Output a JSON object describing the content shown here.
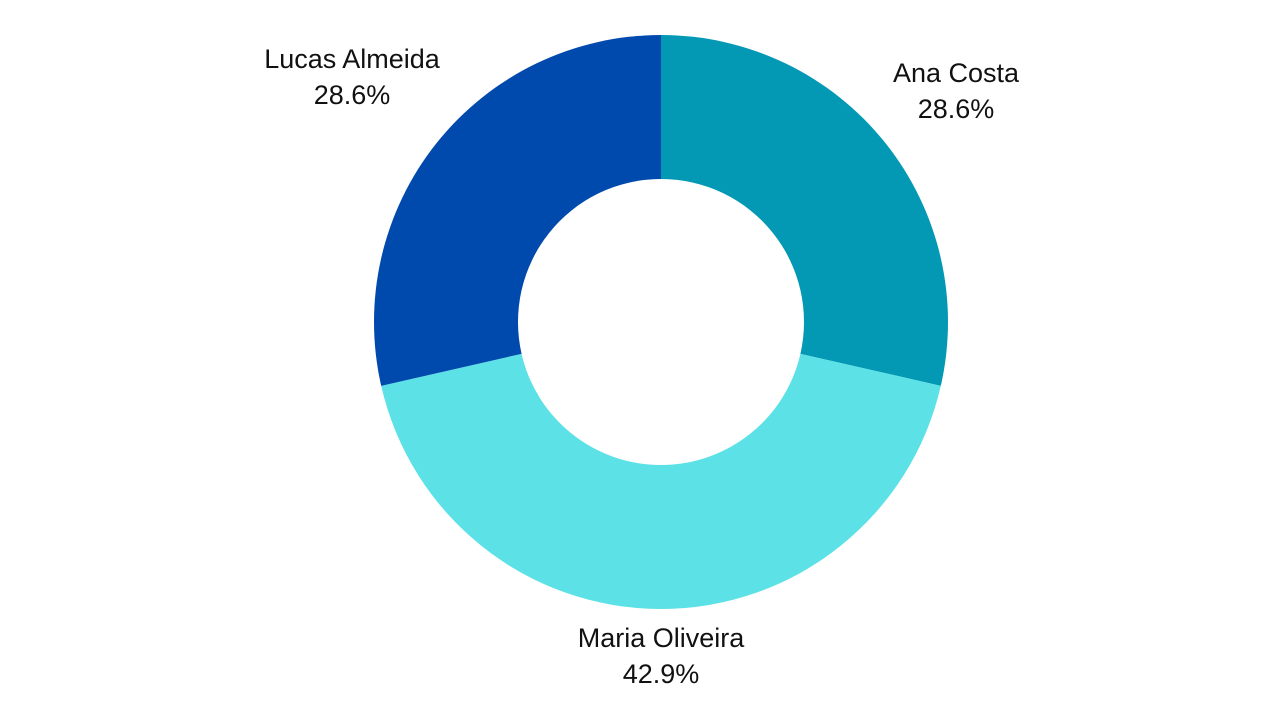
{
  "chart_data": {
    "type": "pie",
    "donut": true,
    "title": "",
    "slices": [
      {
        "label": "Ana Costa",
        "value": 28.6,
        "value_label": "28.6%",
        "color": "#0399B5"
      },
      {
        "label": "Maria Oliveira",
        "value": 42.9,
        "value_label": "42.9%",
        "color": "#5CE1E6"
      },
      {
        "label": "Lucas Almeida",
        "value": 28.6,
        "value_label": "28.6%",
        "color": "#004AAD"
      }
    ],
    "legend": "none"
  }
}
